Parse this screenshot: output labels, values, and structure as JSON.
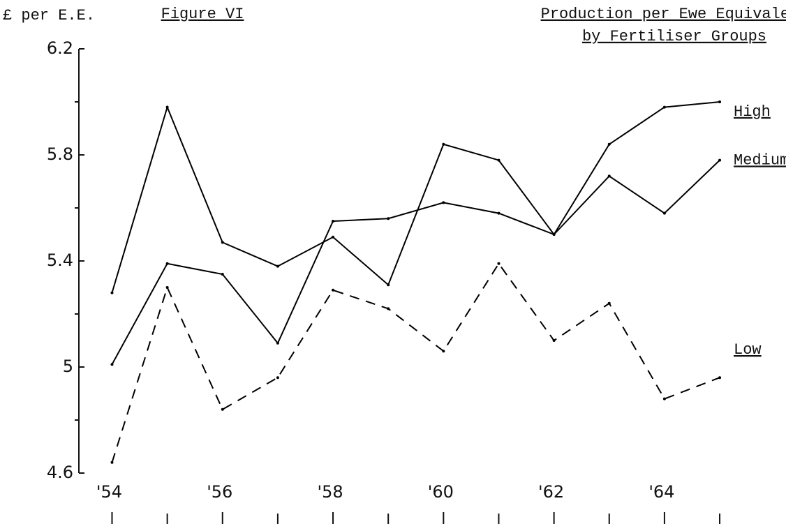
{
  "chart_data": {
    "type": "line",
    "title": "Figure VI",
    "subtitle": [
      "Production per Ewe Equivalent",
      "by Fertiliser Groups"
    ],
    "ylabel": "£ per E.E.",
    "x": [
      1954,
      1955,
      1956,
      1957,
      1958,
      1959,
      1960,
      1961,
      1962,
      1963,
      1964,
      1965
    ],
    "xlim": [
      1953.4,
      1966.2
    ],
    "xticks": [
      {
        "value": 1954,
        "label": "'54"
      },
      {
        "value": 1956,
        "label": "'56"
      },
      {
        "value": 1958,
        "label": "'58"
      },
      {
        "value": 1960,
        "label": "'60"
      },
      {
        "value": 1962,
        "label": "'62"
      },
      {
        "value": 1964,
        "label": "'64"
      }
    ],
    "xminorticks": [
      1955,
      1957,
      1959,
      1961,
      1963,
      1965
    ],
    "ylim": [
      4.6,
      6.2
    ],
    "yticks": [
      4.6,
      5.0,
      5.4,
      5.8,
      6.2
    ],
    "yminorticks": [
      4.8,
      5.2,
      5.6,
      6.0
    ],
    "series": [
      {
        "name": "High",
        "color": "#000000",
        "line_style": "solid",
        "values": [
          5.28,
          5.98,
          5.47,
          5.38,
          5.49,
          5.31,
          5.84,
          5.78,
          5.5,
          5.84,
          5.98,
          6.0
        ]
      },
      {
        "name": "Medium",
        "color": "#000000",
        "line_style": "solid",
        "values": [
          5.01,
          5.39,
          5.35,
          5.09,
          5.55,
          5.56,
          5.62,
          5.58,
          5.5,
          5.72,
          5.58,
          5.78
        ]
      },
      {
        "name": "Low",
        "color": "#000000",
        "line_style": "dashed",
        "values": [
          4.64,
          5.3,
          4.84,
          4.96,
          5.29,
          5.22,
          5.06,
          5.39,
          5.1,
          5.24,
          4.88,
          4.96
        ]
      }
    ]
  }
}
